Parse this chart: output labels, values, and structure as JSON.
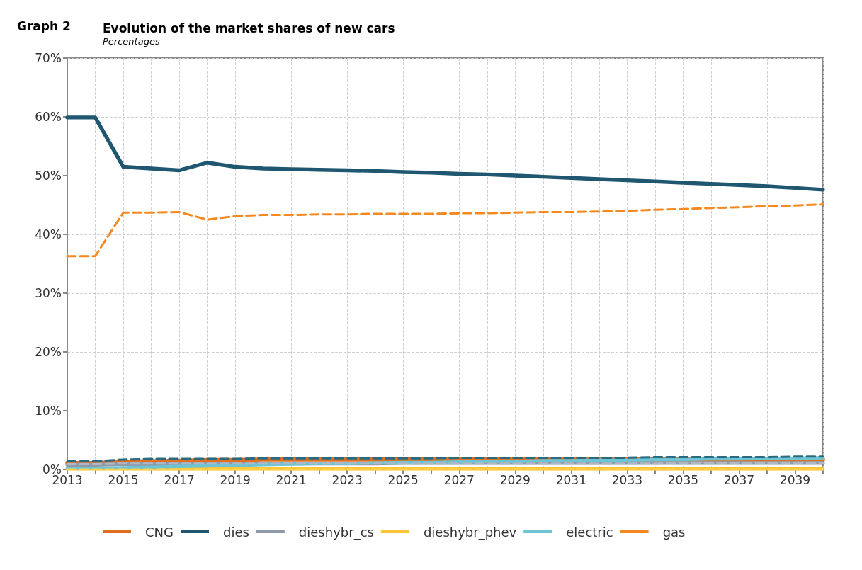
{
  "chart_data": {
    "type": "line",
    "title": "Evolution of the market shares of new cars",
    "subtitle": "Percentages",
    "annotations": [
      "Graph 2"
    ],
    "x": [
      2013,
      2014,
      2015,
      2016,
      2017,
      2018,
      2019,
      2020,
      2021,
      2022,
      2023,
      2024,
      2025,
      2026,
      2027,
      2028,
      2029,
      2030,
      2031,
      2032,
      2033,
      2034,
      2035,
      2036,
      2037,
      2038,
      2039,
      2040
    ],
    "xlim": [
      2013,
      2040
    ],
    "xticks": [
      2013,
      {
        "value": 2014,
        "label": null
      },
      2015,
      {
        "value": 2016,
        "label": null
      },
      2017,
      {
        "value": 2018,
        "label": null
      },
      2019,
      {
        "value": 2020,
        "label": null
      },
      2021,
      {
        "value": 2022,
        "label": null
      },
      2023,
      {
        "value": 2024,
        "label": null
      },
      2025,
      {
        "value": 2026,
        "label": null
      },
      2027,
      {
        "value": 2028,
        "label": null
      },
      2029,
      {
        "value": 2030,
        "label": null
      },
      2031,
      {
        "value": 2032,
        "label": null
      },
      2033,
      {
        "value": 2034,
        "label": null
      },
      2035,
      {
        "value": 2036,
        "label": null
      },
      2037,
      {
        "value": 2038,
        "label": null
      },
      2039,
      {
        "value": 2040,
        "label": null
      }
    ],
    "ylim": [
      0,
      70
    ],
    "yticks": [
      {
        "value": 0,
        "label": "0%"
      },
      {
        "value": 10,
        "label": "10%"
      },
      {
        "value": 20,
        "label": "20%"
      },
      {
        "value": 30,
        "label": "30%"
      },
      {
        "value": 40,
        "label": "40%"
      },
      {
        "value": 50,
        "label": "50%"
      },
      {
        "value": 60,
        "label": "60%"
      },
      {
        "value": 70,
        "label": "70%"
      }
    ],
    "grid": true,
    "legend": "bottom",
    "marker": "none",
    "series": [
      {
        "name": "CNG",
        "color": "#e07020",
        "line_style": "solid",
        "values": [
          1.1,
          1.1,
          1.3,
          1.4,
          1.5,
          1.6,
          1.6,
          1.7,
          1.7,
          1.7,
          1.7,
          1.7,
          1.7,
          1.7,
          1.7,
          1.7,
          1.7,
          1.7,
          1.7,
          1.7,
          1.7,
          1.7,
          1.7,
          1.7,
          1.7,
          1.7,
          1.7,
          1.7
        ]
      },
      {
        "name": "dies",
        "color": "#1f5670",
        "line_style": "solid",
        "values": [
          59.9,
          59.9,
          51.5,
          51.2,
          50.9,
          52.2,
          51.5,
          51.2,
          51.1,
          51.0,
          50.9,
          50.8,
          50.6,
          50.5,
          50.3,
          50.2,
          50.0,
          49.8,
          49.6,
          49.4,
          49.2,
          49.0,
          48.8,
          48.6,
          48.4,
          48.2,
          47.9,
          47.6
        ]
      },
      {
        "name": "dieshybr_cs",
        "color": "#8e9aa8",
        "line_style": "solid",
        "values": [
          0.8,
          0.8,
          0.9,
          0.9,
          0.9,
          1.0,
          1.0,
          1.0,
          1.0,
          1.0,
          1.0,
          1.0,
          1.1,
          1.1,
          1.1,
          1.1,
          1.1,
          1.1,
          1.1,
          1.1,
          1.1,
          1.1,
          1.1,
          1.1,
          1.1,
          1.1,
          1.1,
          1.1
        ]
      },
      {
        "name": "dieshybr_phev",
        "color": "#fdc536",
        "line_style": "solid",
        "values": [
          0.1,
          0.1,
          0.1,
          0.1,
          0.1,
          0.1,
          0.1,
          0.1,
          0.1,
          0.1,
          0.1,
          0.1,
          0.1,
          0.1,
          0.1,
          0.1,
          0.1,
          0.1,
          0.1,
          0.1,
          0.1,
          0.1,
          0.1,
          0.1,
          0.1,
          0.1,
          0.1,
          0.1
        ]
      },
      {
        "name": "electric",
        "color": "#6cc4d4",
        "line_style": "solid",
        "values": [
          0.2,
          0.2,
          0.3,
          0.4,
          0.5,
          0.6,
          0.7,
          0.8,
          0.9,
          1.0,
          1.0,
          1.1,
          1.2,
          1.2,
          1.3,
          1.4,
          1.4,
          1.5,
          1.5,
          1.6,
          1.6,
          1.7,
          1.7,
          1.8,
          1.8,
          1.9,
          1.9,
          2.0
        ]
      },
      {
        "name": "gas",
        "color": "#f5891f",
        "line_style": "dashed",
        "values": [
          36.3,
          36.3,
          43.7,
          43.7,
          43.8,
          42.5,
          43.1,
          43.3,
          43.3,
          43.4,
          43.4,
          43.5,
          43.5,
          43.5,
          43.6,
          43.6,
          43.7,
          43.8,
          43.8,
          43.9,
          44.0,
          44.2,
          44.3,
          44.5,
          44.6,
          44.8,
          44.9,
          45.1
        ]
      },
      {
        "color": "#2a6a80",
        "line_style": "dashed",
        "values": [
          1.4,
          1.4,
          1.7,
          1.8,
          1.8,
          1.8,
          1.8,
          1.9,
          1.9,
          1.9,
          1.9,
          1.9,
          1.9,
          1.9,
          2.0,
          2.0,
          2.0,
          2.0,
          2.0,
          2.0,
          2.0,
          2.1,
          2.1,
          2.1,
          2.1,
          2.1,
          2.2,
          2.2
        ]
      },
      {
        "color": "#b0b8c8",
        "line_style": "dashed",
        "values": [
          0.9,
          0.9,
          1.0,
          1.0,
          1.0,
          1.0,
          1.0,
          1.0,
          1.0,
          1.0,
          1.0,
          1.0,
          1.0,
          1.0,
          1.0,
          1.0,
          1.0,
          1.0,
          1.0,
          1.0,
          1.0,
          1.0,
          1.1,
          1.1,
          1.1,
          1.1,
          1.1,
          1.1
        ]
      },
      {
        "color": "#ffd24d",
        "line_style": "dashed",
        "values": [
          0.0,
          0.0,
          0.0,
          0.0,
          0.0,
          0.0,
          0.0,
          0.0,
          0.0,
          0.0,
          0.0,
          0.0,
          0.0,
          0.0,
          0.0,
          0.0,
          0.0,
          0.0,
          0.0,
          0.0,
          0.0,
          0.0,
          0.0,
          0.0,
          0.0,
          0.0,
          0.0,
          0.0
        ]
      }
    ]
  }
}
